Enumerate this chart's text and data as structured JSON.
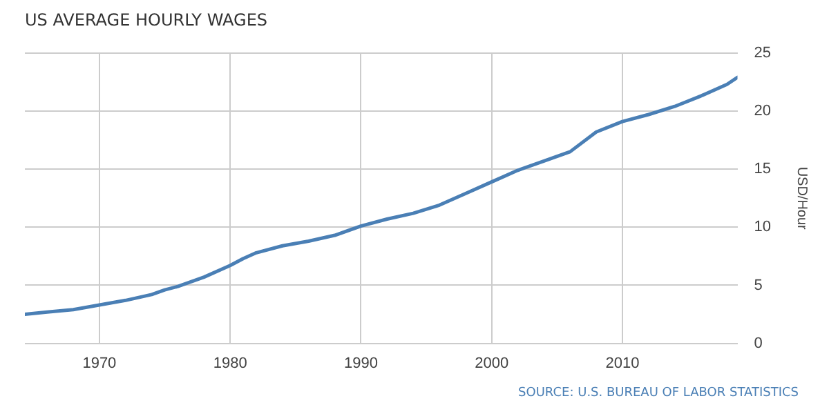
{
  "chart_data": {
    "type": "line",
    "title": "US AVERAGE HOURLY WAGES",
    "ylabel": "USD/Hour",
    "x": [
      1964.3,
      1966,
      1968,
      1970,
      1972,
      1974,
      1975,
      1976,
      1978,
      1980,
      1981,
      1982,
      1984,
      1986,
      1988,
      1990,
      1992,
      1994,
      1996,
      1998,
      2000,
      2002,
      2004,
      2006,
      2008,
      2010,
      2012,
      2014,
      2016,
      2018,
      2018.8
    ],
    "series": [
      {
        "color": "#4a7fb5",
        "values": [
          2.5,
          2.7,
          2.9,
          3.3,
          3.7,
          4.2,
          4.6,
          4.9,
          5.7,
          6.7,
          7.3,
          7.8,
          8.4,
          8.8,
          9.3,
          10.1,
          10.7,
          11.2,
          11.9,
          12.9,
          13.9,
          14.9,
          15.7,
          16.5,
          18.2,
          19.1,
          19.7,
          20.4,
          21.3,
          22.3,
          22.9
        ]
      }
    ],
    "xlim": [
      1964.3,
      2018.8
    ],
    "xticks": [
      1970,
      1980,
      1990,
      2000,
      2010
    ],
    "ylim": [
      0,
      25
    ],
    "yticks": [
      0,
      5,
      10,
      15,
      20,
      25
    ],
    "grid": true,
    "legend": false,
    "marker": "none",
    "line_style": "solid",
    "annotations": [
      "SOURCE: U.S. BUREAU OF LABOR STATISTICS"
    ]
  }
}
